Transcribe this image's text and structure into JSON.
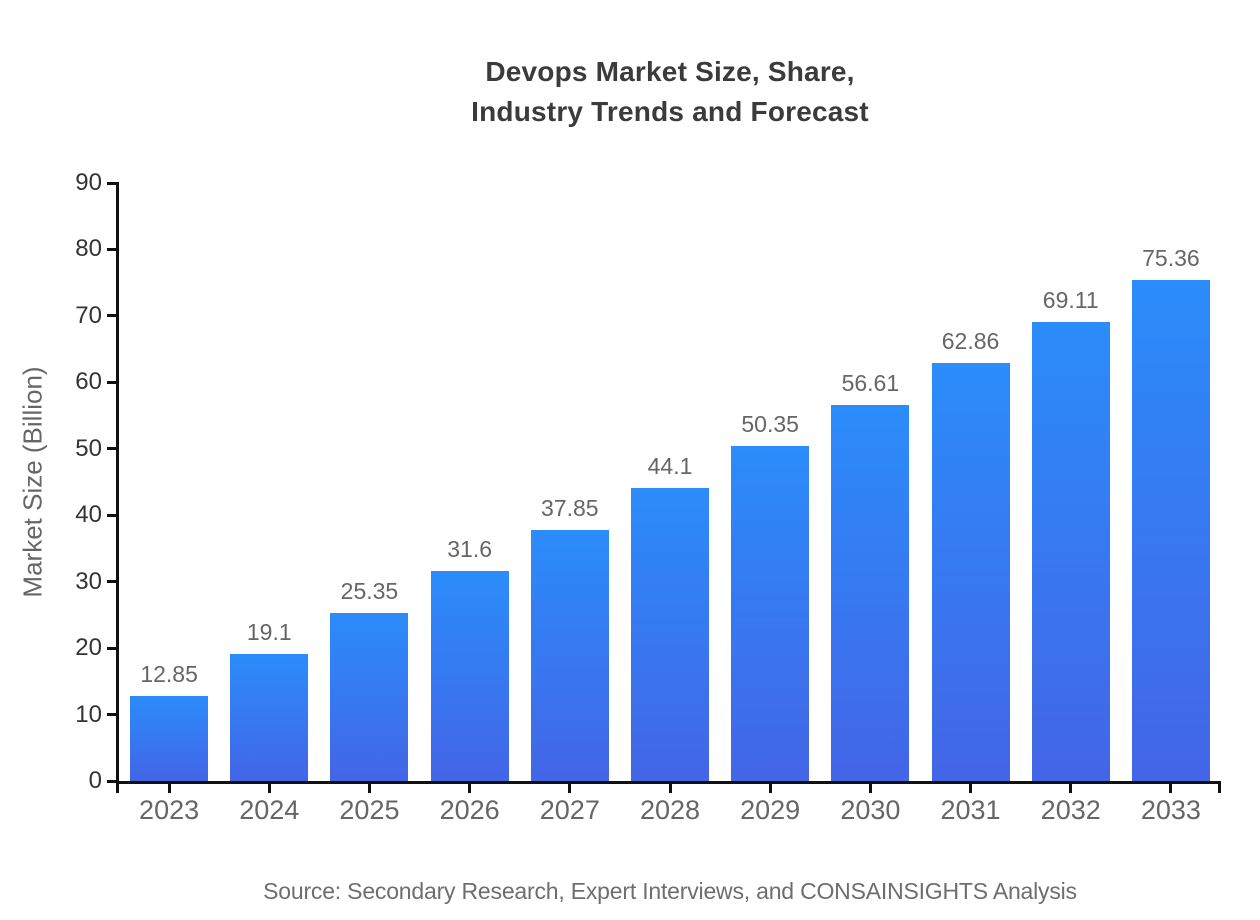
{
  "title": {
    "line1": "Devops Market Size, Share,",
    "line2": "Industry Trends and Forecast"
  },
  "source": "Source: Secondary Research, Expert Interviews, and CONSAINSIGHTS Analysis",
  "chart_data": {
    "type": "bar",
    "title": "Devops Market Size, Share, Industry Trends and Forecast",
    "xlabel": "",
    "ylabel": "Market Size (Billion)",
    "categories": [
      "2023",
      "2024",
      "2025",
      "2026",
      "2027",
      "2028",
      "2029",
      "2030",
      "2031",
      "2032",
      "2033"
    ],
    "values": [
      12.85,
      19.1,
      25.35,
      31.6,
      37.85,
      44.1,
      50.35,
      56.61,
      62.86,
      69.11,
      75.36
    ],
    "value_labels": [
      "12.85",
      "19.1",
      "25.35",
      "31.6",
      "37.85",
      "44.1",
      "50.35",
      "56.61",
      "62.86",
      "69.11",
      "75.36"
    ],
    "ylim": [
      0,
      90
    ],
    "yticks": [
      0,
      10,
      20,
      30,
      40,
      50,
      60,
      70,
      80,
      90
    ],
    "grid": false,
    "legend": false,
    "colors": {
      "bar_top": "#2b8cfa",
      "bar_bottom": "#4365e6",
      "axis": "#111111",
      "title_text": "#3b3b3b",
      "ytick_text": "#333333",
      "xtick_text": "#666666",
      "value_label_text": "#666666",
      "source_text": "#6e6e6e"
    }
  }
}
